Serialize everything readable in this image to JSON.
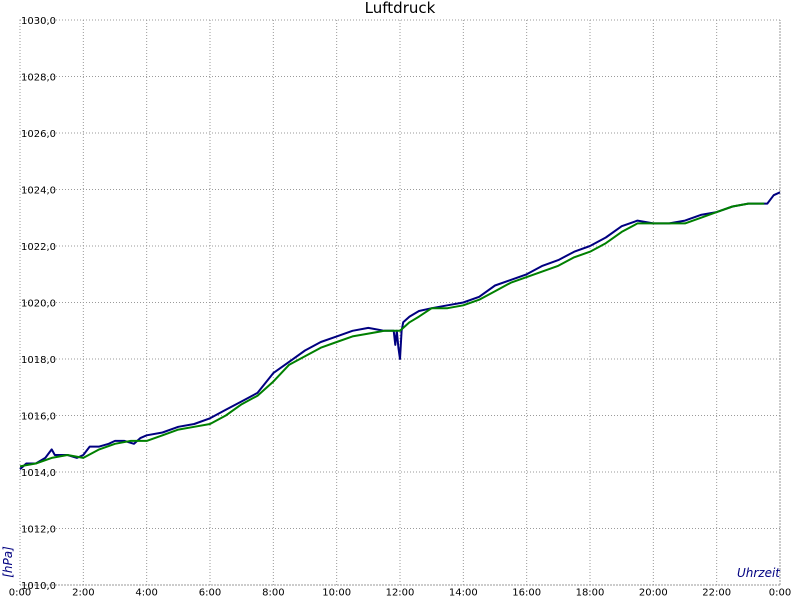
{
  "chart_data": {
    "type": "line",
    "title": "Luftdruck",
    "xlabel": "Uhrzeit",
    "ylabel": "[hPa]",
    "xlim": [
      0,
      24
    ],
    "ylim": [
      1010,
      1030
    ],
    "yticks": [
      "1010,0",
      "1012,0",
      "1014,0",
      "1016,0",
      "1018,0",
      "1020,0",
      "1022,0",
      "1024,0",
      "1026,0",
      "1028,0",
      "1030,0"
    ],
    "xticks": [
      "0:00",
      "2:00",
      "4:00",
      "6:00",
      "8:00",
      "10:00",
      "12:00",
      "14:00",
      "16:00",
      "18:00",
      "20:00",
      "22:00",
      "0:00"
    ],
    "grid": true,
    "colors": {
      "series1": "#000080",
      "series2": "#008000",
      "axis_label": "#000080"
    },
    "series": [
      {
        "x": [
          0,
          0.2,
          0.5,
          0.8,
          1.0,
          1.1,
          1.2,
          1.5,
          1.8,
          2.0,
          2.2,
          2.5,
          2.8,
          3.0,
          3.3,
          3.6,
          3.8,
          4.0,
          4.5,
          5.0,
          5.5,
          6.0,
          6.5,
          7.0,
          7.5,
          8.0,
          8.5,
          9.0,
          9.5,
          10.0,
          10.5,
          11.0,
          11.5,
          11.8,
          11.85,
          11.9,
          11.95,
          12.0,
          12.05,
          12.1,
          12.3,
          12.6,
          13.0,
          13.5,
          14.0,
          14.5,
          15.0,
          15.5,
          16.0,
          16.5,
          17.0,
          17.5,
          18.0,
          18.5,
          19.0,
          19.5,
          20.0,
          20.5,
          21.0,
          21.5,
          22.0,
          22.5,
          23.0,
          23.3,
          23.6,
          23.8,
          24.0
        ],
        "y": [
          1014.1,
          1014.3,
          1014.3,
          1014.5,
          1014.8,
          1014.6,
          1014.6,
          1014.6,
          1014.5,
          1014.6,
          1014.9,
          1014.9,
          1015.0,
          1015.1,
          1015.1,
          1015.0,
          1015.2,
          1015.3,
          1015.4,
          1015.6,
          1015.7,
          1015.9,
          1016.2,
          1016.5,
          1016.8,
          1017.5,
          1017.9,
          1018.3,
          1018.6,
          1018.8,
          1019.0,
          1019.1,
          1019.0,
          1019.0,
          1018.5,
          1019.0,
          1018.4,
          1018.0,
          1019.0,
          1019.3,
          1019.5,
          1019.7,
          1019.8,
          1019.9,
          1020.0,
          1020.2,
          1020.6,
          1020.8,
          1021.0,
          1021.3,
          1021.5,
          1021.8,
          1022.0,
          1022.3,
          1022.7,
          1022.9,
          1022.8,
          1022.8,
          1022.9,
          1023.1,
          1023.2,
          1023.4,
          1023.5,
          1023.5,
          1023.5,
          1023.8,
          1023.9
        ]
      },
      {
        "x": [
          0,
          0.5,
          1.0,
          1.5,
          2.0,
          2.5,
          3.0,
          3.5,
          4.0,
          4.5,
          5.0,
          5.5,
          6.0,
          6.5,
          7.0,
          7.5,
          8.0,
          8.5,
          9.0,
          9.5,
          10.0,
          10.5,
          11.0,
          11.5,
          12.0,
          12.3,
          12.6,
          13.0,
          13.5,
          14.0,
          14.5,
          15.0,
          15.5,
          16.0,
          16.5,
          17.0,
          17.5,
          18.0,
          18.5,
          19.0,
          19.5,
          20.0,
          20.5,
          21.0,
          21.5,
          22.0,
          22.5,
          23.0,
          23.5
        ],
        "y": [
          1014.2,
          1014.3,
          1014.5,
          1014.6,
          1014.5,
          1014.8,
          1015.0,
          1015.1,
          1015.1,
          1015.3,
          1015.5,
          1015.6,
          1015.7,
          1016.0,
          1016.4,
          1016.7,
          1017.2,
          1017.8,
          1018.1,
          1018.4,
          1018.6,
          1018.8,
          1018.9,
          1019.0,
          1019.0,
          1019.3,
          1019.5,
          1019.8,
          1019.8,
          1019.9,
          1020.1,
          1020.4,
          1020.7,
          1020.9,
          1021.1,
          1021.3,
          1021.6,
          1021.8,
          1022.1,
          1022.5,
          1022.8,
          1022.8,
          1022.8,
          1022.8,
          1023.0,
          1023.2,
          1023.4,
          1023.5,
          1023.5
        ]
      }
    ]
  }
}
